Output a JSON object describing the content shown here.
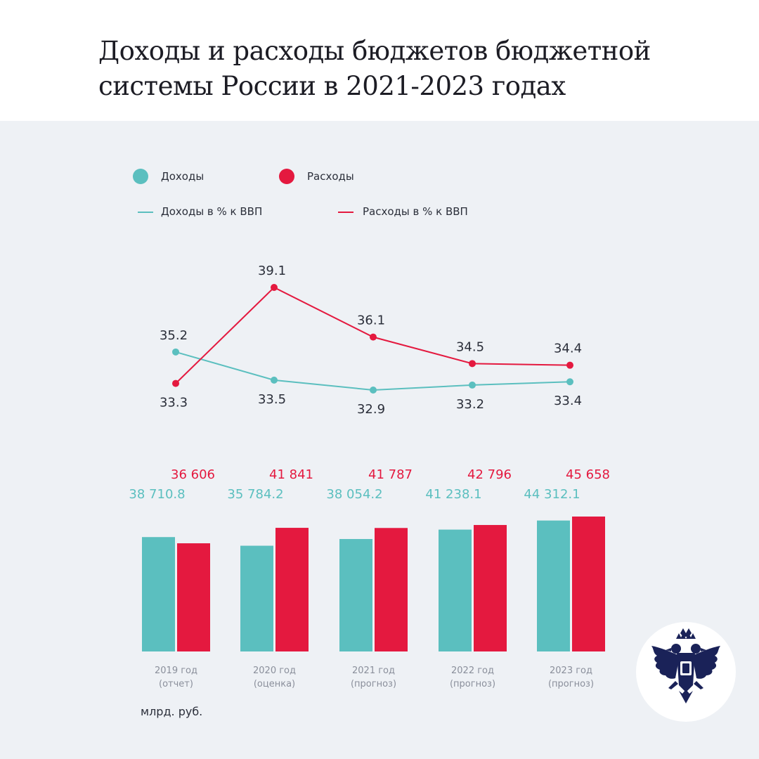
{
  "title": "Доходы и расходы бюджетов бюджетной системы России в 2021-2023 годах",
  "legend": {
    "income": "Доходы",
    "expense": "Расходы",
    "income_pct": "Доходы в % к ВВП",
    "expense_pct": "Расходы в % к ВВП"
  },
  "unit_label": "млрд. руб.",
  "colors": {
    "income": "#5bbfbf",
    "expense": "#e4193f",
    "axis_text": "#2b2f3a",
    "tick_text": "#8a8f9b",
    "background": "#eef1f5"
  },
  "chart_data": [
    {
      "type": "line",
      "title": "",
      "x": [
        "2019 год (отчет)",
        "2020 год (оценка)",
        "2021 год (прогноз)",
        "2022 год (прогноз)",
        "2023 год (прогноз)"
      ],
      "series": [
        {
          "name": "Доходы в % к ВВП",
          "values": [
            35.2,
            33.5,
            32.9,
            33.2,
            33.4
          ]
        },
        {
          "name": "Расходы в % к ВВП",
          "values": [
            33.3,
            39.1,
            36.1,
            34.5,
            34.4
          ]
        }
      ],
      "grid": false
    },
    {
      "type": "bar",
      "title": "",
      "categories": [
        [
          "2019 год",
          "(отчет)"
        ],
        [
          "2020 год",
          "(оценка)"
        ],
        [
          "2021 год",
          "(прогноз)"
        ],
        [
          "2022 год",
          "(прогноз)"
        ],
        [
          "2023 год",
          "(прогноз)"
        ]
      ],
      "series": [
        {
          "name": "Доходы",
          "values": [
            38710.8,
            35784.2,
            38054.2,
            41238.1,
            44312.1
          ],
          "labels": [
            "38 710.8",
            "35 784.2",
            "38 054.2",
            "41 238.1",
            "44 312.1"
          ]
        },
        {
          "name": "Расходы",
          "values": [
            36606,
            41841,
            41787,
            42796,
            45658
          ],
          "labels": [
            "36 606",
            "41 841",
            "41 787",
            "42 796",
            "45 658"
          ]
        }
      ],
      "ylabel": "млрд. руб.",
      "grid": false
    }
  ]
}
